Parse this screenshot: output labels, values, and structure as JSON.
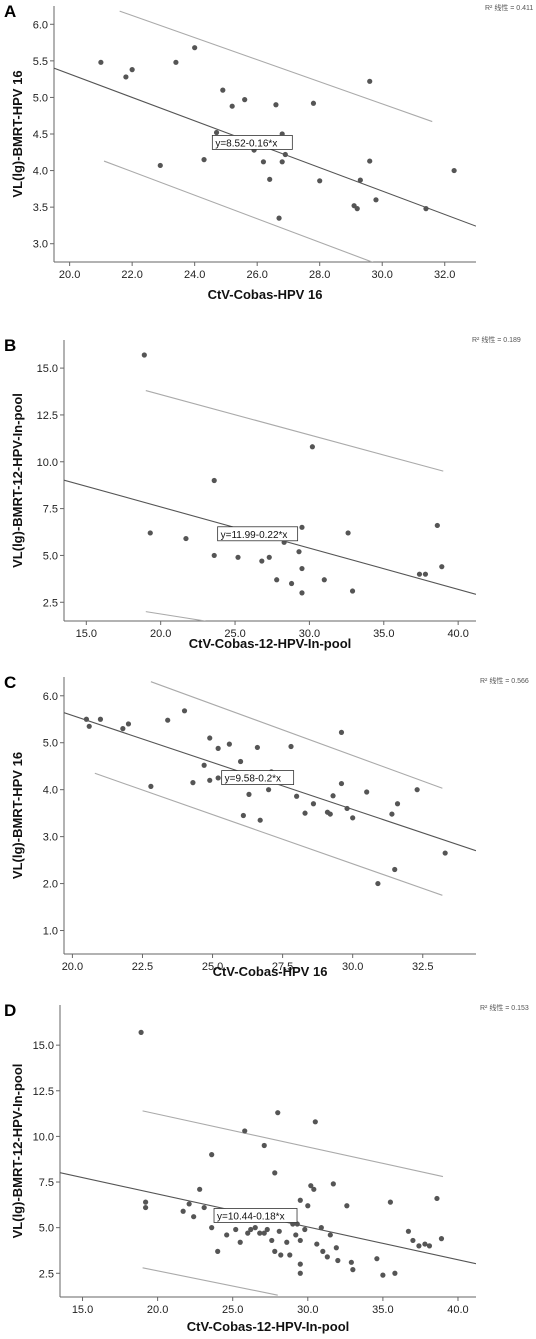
{
  "chart_data": [
    {
      "panel": "A",
      "type": "scatter",
      "r2_label": "R² 线性 = 0.411",
      "equation": "y=8.52-0.16*x",
      "xlabel": "CtV-Cobas-HPV 16",
      "ylabel": "VL(lg)-BMRT-HPV 16",
      "xlim": [
        19.5,
        33.0
      ],
      "ylim": [
        2.75,
        6.25
      ],
      "xticks": [
        "20.0",
        "22.0",
        "24.0",
        "26.0",
        "28.0",
        "30.0",
        "32.0"
      ],
      "yticks": [
        "3.0",
        "3.5",
        "4.0",
        "4.5",
        "5.0",
        "5.5",
        "6.0"
      ],
      "fit": {
        "intercept": 8.52,
        "slope": -0.16
      },
      "ci_upper": [
        [
          21.6,
          6.18
        ],
        [
          31.6,
          4.67
        ]
      ],
      "ci_lower": [
        [
          21.1,
          4.13
        ],
        [
          29.8,
          2.73
        ]
      ],
      "points": [
        [
          21.0,
          5.48
        ],
        [
          21.8,
          5.28
        ],
        [
          22.0,
          5.38
        ],
        [
          22.9,
          4.07
        ],
        [
          23.4,
          5.48
        ],
        [
          24.0,
          5.68
        ],
        [
          24.3,
          4.15
        ],
        [
          24.7,
          4.52
        ],
        [
          24.9,
          5.1
        ],
        [
          25.2,
          4.88
        ],
        [
          25.6,
          4.97
        ],
        [
          25.9,
          4.28
        ],
        [
          26.2,
          4.12
        ],
        [
          26.4,
          3.88
        ],
        [
          26.6,
          4.9
        ],
        [
          26.7,
          3.35
        ],
        [
          26.8,
          4.12
        ],
        [
          26.8,
          4.5
        ],
        [
          26.9,
          4.22
        ],
        [
          27.0,
          4.38
        ],
        [
          27.8,
          4.92
        ],
        [
          28.0,
          3.86
        ],
        [
          29.1,
          3.52
        ],
        [
          29.2,
          3.48
        ],
        [
          29.3,
          3.87
        ],
        [
          29.6,
          4.13
        ],
        [
          29.6,
          5.22
        ],
        [
          29.8,
          3.6
        ],
        [
          31.4,
          3.48
        ],
        [
          32.3,
          4.0
        ]
      ]
    },
    {
      "panel": "B",
      "type": "scatter",
      "r2_label": "R² 线性 = 0.189",
      "equation": "y=11.99-0.22*x",
      "xlabel": "CtV-Cobas-12-HPV-In-pool",
      "ylabel": "VL(lg)-BMRT-12-HPV-In-pool",
      "xlim": [
        13.5,
        41.2
      ],
      "ylim": [
        1.5,
        16.5
      ],
      "xticks": [
        "15.0",
        "20.0",
        "25.0",
        "30.0",
        "35.0",
        "40.0"
      ],
      "yticks": [
        "2.5",
        "5.0",
        "7.5",
        "10.0",
        "12.5",
        "15.0"
      ],
      "fit": {
        "intercept": 11.99,
        "slope": -0.22
      },
      "ci_upper": [
        [
          19.0,
          13.8
        ],
        [
          39.0,
          9.5
        ]
      ],
      "ci_lower": [
        [
          19.0,
          2.0
        ],
        [
          23.0,
          1.5
        ]
      ],
      "points": [
        [
          18.9,
          15.7
        ],
        [
          19.3,
          6.2
        ],
        [
          21.7,
          5.9
        ],
        [
          23.6,
          9.0
        ],
        [
          23.6,
          5.0
        ],
        [
          25.2,
          4.9
        ],
        [
          26.8,
          4.7
        ],
        [
          27.3,
          4.9
        ],
        [
          27.8,
          3.7
        ],
        [
          28.3,
          5.7
        ],
        [
          28.8,
          3.5
        ],
        [
          29.3,
          5.2
        ],
        [
          29.5,
          6.5
        ],
        [
          29.5,
          4.3
        ],
        [
          29.5,
          3.0
        ],
        [
          30.2,
          10.8
        ],
        [
          31.0,
          3.7
        ],
        [
          32.6,
          6.2
        ],
        [
          32.9,
          3.1
        ],
        [
          37.4,
          4.0
        ],
        [
          37.8,
          4.0
        ],
        [
          38.6,
          6.6
        ],
        [
          38.9,
          4.4
        ]
      ]
    },
    {
      "panel": "C",
      "type": "scatter",
      "r2_label": "R² 线性 = 0.566",
      "equation": "y=9.58-0.2*x",
      "xlabel": "CtV-Cobas-HPV 16",
      "ylabel": "VL(lg)-BMRT-HPV 16",
      "xlim": [
        19.7,
        34.4
      ],
      "ylim": [
        0.5,
        6.4
      ],
      "xticks": [
        "20.0",
        "22.5",
        "25.0",
        "27.5",
        "30.0",
        "32.5"
      ],
      "yticks": [
        "1.0",
        "2.0",
        "3.0",
        "4.0",
        "5.0",
        "6.0"
      ],
      "fit": {
        "intercept": 9.58,
        "slope": -0.2
      },
      "ci_upper": [
        [
          22.8,
          6.3
        ],
        [
          33.2,
          4.03
        ]
      ],
      "ci_lower": [
        [
          20.8,
          4.35
        ],
        [
          33.2,
          1.75
        ]
      ],
      "points": [
        [
          20.5,
          5.5
        ],
        [
          20.6,
          5.35
        ],
        [
          21.0,
          5.5
        ],
        [
          21.8,
          5.3
        ],
        [
          22.0,
          5.4
        ],
        [
          22.8,
          4.07
        ],
        [
          23.4,
          5.48
        ],
        [
          24.0,
          5.68
        ],
        [
          24.3,
          4.15
        ],
        [
          24.7,
          4.52
        ],
        [
          24.9,
          5.1
        ],
        [
          24.9,
          4.2
        ],
        [
          25.2,
          4.88
        ],
        [
          25.2,
          4.25
        ],
        [
          25.6,
          4.97
        ],
        [
          26.0,
          4.6
        ],
        [
          26.1,
          3.45
        ],
        [
          26.3,
          3.9
        ],
        [
          26.6,
          4.9
        ],
        [
          26.7,
          3.35
        ],
        [
          26.9,
          4.3
        ],
        [
          27.0,
          4.0
        ],
        [
          27.1,
          4.38
        ],
        [
          27.8,
          4.92
        ],
        [
          28.0,
          3.86
        ],
        [
          28.3,
          3.5
        ],
        [
          28.6,
          3.7
        ],
        [
          29.1,
          3.52
        ],
        [
          29.2,
          3.48
        ],
        [
          29.3,
          3.87
        ],
        [
          29.6,
          4.13
        ],
        [
          29.6,
          5.22
        ],
        [
          29.8,
          3.6
        ],
        [
          30.0,
          3.4
        ],
        [
          30.5,
          3.95
        ],
        [
          30.9,
          2.0
        ],
        [
          31.4,
          3.48
        ],
        [
          31.5,
          2.3
        ],
        [
          31.6,
          3.7
        ],
        [
          32.3,
          4.0
        ],
        [
          33.3,
          2.65
        ]
      ]
    },
    {
      "panel": "D",
      "type": "scatter",
      "r2_label": "R² 线性 = 0.153",
      "equation": "y=10.44-0.18*x",
      "xlabel": "CtV-Cobas-12-HPV-In-pool",
      "ylabel": "VL(lg)-BMRT-12-HPV-In-pool",
      "xlim": [
        13.5,
        41.2
      ],
      "ylim": [
        1.2,
        17.2
      ],
      "xticks": [
        "15.0",
        "20.0",
        "25.0",
        "30.0",
        "35.0",
        "40.0"
      ],
      "yticks": [
        "2.5",
        "5.0",
        "7.5",
        "10.0",
        "12.5",
        "15.0"
      ],
      "fit": {
        "intercept": 10.44,
        "slope": -0.18
      },
      "ci_upper": [
        [
          19.0,
          11.4
        ],
        [
          39.0,
          7.8
        ]
      ],
      "ci_lower": [
        [
          19.0,
          2.8
        ],
        [
          28.0,
          1.3
        ]
      ],
      "points": [
        [
          18.9,
          15.7
        ],
        [
          19.2,
          6.4
        ],
        [
          19.2,
          6.1
        ],
        [
          21.7,
          5.9
        ],
        [
          22.1,
          6.3
        ],
        [
          22.4,
          5.6
        ],
        [
          22.8,
          7.1
        ],
        [
          23.1,
          6.1
        ],
        [
          23.6,
          9.0
        ],
        [
          23.6,
          5.0
        ],
        [
          24.0,
          3.7
        ],
        [
          24.6,
          4.6
        ],
        [
          25.1,
          5.8
        ],
        [
          25.2,
          4.9
        ],
        [
          25.5,
          4.2
        ],
        [
          25.8,
          10.3
        ],
        [
          26.0,
          4.7
        ],
        [
          26.2,
          4.9
        ],
        [
          26.5,
          5.0
        ],
        [
          26.8,
          4.7
        ],
        [
          27.1,
          9.5
        ],
        [
          27.1,
          4.7
        ],
        [
          27.3,
          4.9
        ],
        [
          27.6,
          4.3
        ],
        [
          27.8,
          3.7
        ],
        [
          27.8,
          8.0
        ],
        [
          28.0,
          11.3
        ],
        [
          28.1,
          4.8
        ],
        [
          28.2,
          3.5
        ],
        [
          28.3,
          5.7
        ],
        [
          28.6,
          4.2
        ],
        [
          28.8,
          3.5
        ],
        [
          29.0,
          5.2
        ],
        [
          29.2,
          4.6
        ],
        [
          29.3,
          5.2
        ],
        [
          29.5,
          6.5
        ],
        [
          29.5,
          4.3
        ],
        [
          29.5,
          3.0
        ],
        [
          29.5,
          2.5
        ],
        [
          29.8,
          4.9
        ],
        [
          30.0,
          6.2
        ],
        [
          30.2,
          7.3
        ],
        [
          30.4,
          7.1
        ],
        [
          30.5,
          10.8
        ],
        [
          30.6,
          4.1
        ],
        [
          30.9,
          5.0
        ],
        [
          31.0,
          3.7
        ],
        [
          31.3,
          3.4
        ],
        [
          31.5,
          4.6
        ],
        [
          31.7,
          7.4
        ],
        [
          31.9,
          3.9
        ],
        [
          32.0,
          3.2
        ],
        [
          32.6,
          6.2
        ],
        [
          32.9,
          3.1
        ],
        [
          33.0,
          2.7
        ],
        [
          34.6,
          3.3
        ],
        [
          35.0,
          2.4
        ],
        [
          35.5,
          6.4
        ],
        [
          35.8,
          2.5
        ],
        [
          36.7,
          4.8
        ],
        [
          37.0,
          4.3
        ],
        [
          37.4,
          4.0
        ],
        [
          37.8,
          4.1
        ],
        [
          38.1,
          4.0
        ],
        [
          38.6,
          6.6
        ],
        [
          38.9,
          4.4
        ]
      ]
    }
  ]
}
